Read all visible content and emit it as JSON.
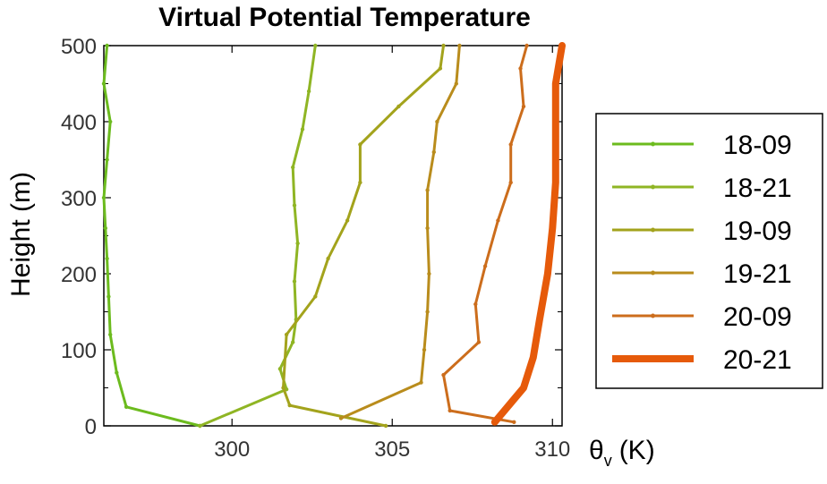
{
  "chart_data": {
    "type": "line",
    "title": "Virtual Potential Temperature",
    "xlabel": "θ",
    "xlabel_sub": "v",
    "xlabel_unit": "(K)",
    "ylabel": "Height (m)",
    "xlim": [
      296,
      310.3
    ],
    "ylim": [
      0,
      500
    ],
    "xticks": [
      "300",
      "305",
      "310"
    ],
    "yticks": [
      "0",
      "100",
      "200",
      "300",
      "400",
      "500"
    ],
    "grid": false,
    "legend": "right",
    "series": [
      {
        "name": "18-09",
        "color": "#6cbb1e",
        "width": 3,
        "points": [
          [
            299.0,
            0
          ],
          [
            296.7,
            25
          ],
          [
            296.4,
            70
          ],
          [
            296.2,
            120
          ],
          [
            296.15,
            170
          ],
          [
            296.1,
            220
          ],
          [
            296.05,
            260
          ],
          [
            296.0,
            300
          ],
          [
            296.1,
            350
          ],
          [
            296.2,
            400
          ],
          [
            296.0,
            450
          ],
          [
            296.1,
            500
          ]
        ]
      },
      {
        "name": "18-21",
        "color": "#8fb524",
        "width": 3,
        "points": [
          [
            299.0,
            0
          ],
          [
            301.7,
            48
          ],
          [
            301.5,
            75
          ],
          [
            301.9,
            110
          ],
          [
            302.0,
            140
          ],
          [
            301.95,
            190
          ],
          [
            302.05,
            240
          ],
          [
            301.95,
            290
          ],
          [
            301.9,
            340
          ],
          [
            302.2,
            390
          ],
          [
            302.4,
            440
          ],
          [
            302.6,
            500
          ]
        ]
      },
      {
        "name": "19-09",
        "color": "#a3a31c",
        "width": 3,
        "points": [
          [
            304.8,
            0
          ],
          [
            301.8,
            27
          ],
          [
            301.6,
            50
          ],
          [
            301.7,
            120
          ],
          [
            302.6,
            170
          ],
          [
            303.0,
            220
          ],
          [
            303.6,
            270
          ],
          [
            304.0,
            320
          ],
          [
            304.0,
            370
          ],
          [
            305.2,
            420
          ],
          [
            306.5,
            470
          ],
          [
            306.6,
            500
          ]
        ]
      },
      {
        "name": "19-21",
        "color": "#b98c1c",
        "width": 3,
        "points": [
          [
            303.4,
            10
          ],
          [
            305.9,
            57
          ],
          [
            306.0,
            100
          ],
          [
            306.1,
            150
          ],
          [
            306.15,
            200
          ],
          [
            306.1,
            260
          ],
          [
            306.1,
            310
          ],
          [
            306.3,
            360
          ],
          [
            306.4,
            400
          ],
          [
            307.0,
            450
          ],
          [
            307.1,
            500
          ]
        ]
      },
      {
        "name": "20-09",
        "color": "#cc6d1c",
        "width": 3,
        "points": [
          [
            308.8,
            5
          ],
          [
            306.8,
            20
          ],
          [
            306.6,
            67
          ],
          [
            307.7,
            110
          ],
          [
            307.6,
            160
          ],
          [
            307.9,
            210
          ],
          [
            308.3,
            270
          ],
          [
            308.7,
            320
          ],
          [
            308.7,
            370
          ],
          [
            309.1,
            420
          ],
          [
            309.0,
            470
          ],
          [
            309.2,
            500
          ]
        ]
      },
      {
        "name": "20-21",
        "color": "#e65a0a",
        "width": 8,
        "points": [
          [
            308.2,
            5
          ],
          [
            308.7,
            30
          ],
          [
            309.1,
            50
          ],
          [
            309.4,
            90
          ],
          [
            309.6,
            140
          ],
          [
            309.85,
            200
          ],
          [
            310.0,
            260
          ],
          [
            310.1,
            320
          ],
          [
            310.1,
            380
          ],
          [
            310.1,
            450
          ],
          [
            310.3,
            500
          ]
        ]
      }
    ]
  }
}
